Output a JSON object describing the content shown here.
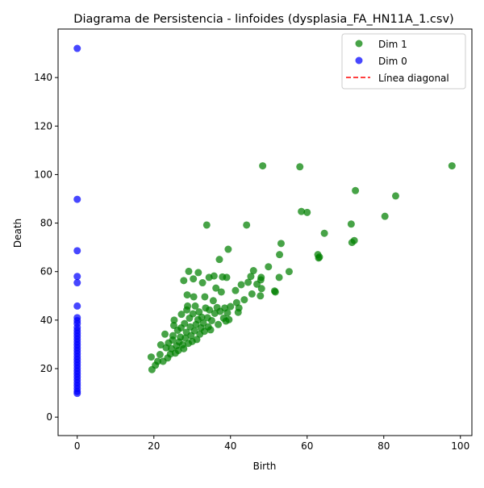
{
  "chart_data": {
    "type": "scatter",
    "title": "Diagrama de Persistencia - linfoides (dysplasia_FA_HN11A_1.csv)",
    "xlabel": "Birth",
    "ylabel": "Death",
    "xlim": [
      -5,
      103
    ],
    "ylim": [
      -7.6,
      160
    ],
    "xticks": [
      0,
      20,
      40,
      60,
      80,
      100
    ],
    "yticks": [
      0,
      20,
      40,
      60,
      80,
      100,
      120,
      140
    ],
    "grid": false,
    "legend_position": "top-right",
    "series": [
      {
        "name": "Dim 1",
        "color": "#008000",
        "points": [
          [
            19.3,
            24.8
          ],
          [
            19.5,
            19.6
          ],
          [
            20.4,
            21.4
          ],
          [
            21.0,
            23.0
          ],
          [
            21.6,
            25.8
          ],
          [
            21.8,
            29.8
          ],
          [
            22.4,
            23.0
          ],
          [
            22.9,
            34.2
          ],
          [
            23.2,
            28.6
          ],
          [
            23.6,
            24.4
          ],
          [
            23.8,
            30.6
          ],
          [
            24.3,
            26.0
          ],
          [
            24.6,
            28.2
          ],
          [
            24.9,
            31.8
          ],
          [
            25.0,
            33.6
          ],
          [
            25.2,
            37.8
          ],
          [
            25.3,
            40.0
          ],
          [
            25.6,
            26.4
          ],
          [
            25.9,
            29.4
          ],
          [
            26.2,
            35.8
          ],
          [
            26.4,
            27.5
          ],
          [
            26.6,
            31.0
          ],
          [
            26.9,
            33.0
          ],
          [
            27.1,
            36.8
          ],
          [
            27.2,
            42.4
          ],
          [
            27.5,
            29.8
          ],
          [
            27.8,
            28.2
          ],
          [
            27.8,
            56.3
          ],
          [
            28.0,
            38.6
          ],
          [
            28.2,
            32.6
          ],
          [
            28.5,
            35.0
          ],
          [
            28.6,
            44.2
          ],
          [
            28.7,
            50.4
          ],
          [
            28.8,
            45.8
          ],
          [
            29.0,
            30.4
          ],
          [
            29.1,
            60.1
          ],
          [
            29.3,
            40.8
          ],
          [
            29.5,
            37.2
          ],
          [
            29.7,
            33.6
          ],
          [
            30.0,
            31.2
          ],
          [
            30.2,
            42.6
          ],
          [
            30.3,
            57.0
          ],
          [
            30.4,
            49.6
          ],
          [
            30.6,
            35.6
          ],
          [
            30.8,
            45.8
          ],
          [
            31.0,
            38.2
          ],
          [
            31.2,
            32.0
          ],
          [
            31.5,
            40.2
          ],
          [
            31.6,
            59.6
          ],
          [
            31.8,
            43.4
          ],
          [
            32.0,
            34.2
          ],
          [
            32.3,
            36.8
          ],
          [
            32.5,
            41.2
          ],
          [
            32.7,
            55.4
          ],
          [
            32.9,
            38.8
          ],
          [
            33.2,
            35.4
          ],
          [
            33.3,
            49.6
          ],
          [
            33.5,
            45.0
          ],
          [
            33.8,
            79.2
          ],
          [
            34.0,
            41.0
          ],
          [
            34.2,
            37.2
          ],
          [
            34.4,
            57.6
          ],
          [
            34.5,
            44.2
          ],
          [
            34.8,
            36.0
          ],
          [
            35.1,
            39.8
          ],
          [
            35.5,
            48.0
          ],
          [
            35.7,
            58.2
          ],
          [
            35.9,
            42.8
          ],
          [
            36.2,
            53.2
          ],
          [
            36.5,
            45.2
          ],
          [
            36.8,
            38.2
          ],
          [
            37.1,
            65.0
          ],
          [
            37.3,
            43.6
          ],
          [
            37.6,
            51.6
          ],
          [
            37.9,
            57.8
          ],
          [
            38.2,
            40.8
          ],
          [
            38.5,
            45.0
          ],
          [
            38.8,
            39.6
          ],
          [
            39.0,
            57.6
          ],
          [
            39.2,
            43.0
          ],
          [
            39.4,
            69.2
          ],
          [
            39.6,
            40.2
          ],
          [
            40.0,
            45.6
          ],
          [
            41.3,
            52.2
          ],
          [
            41.6,
            47.2
          ],
          [
            42.0,
            43.2
          ],
          [
            42.2,
            45.0
          ],
          [
            42.8,
            54.6
          ],
          [
            43.6,
            48.4
          ],
          [
            44.2,
            79.2
          ],
          [
            44.6,
            55.6
          ],
          [
            45.3,
            58.0
          ],
          [
            45.6,
            50.8
          ],
          [
            46.0,
            60.4
          ],
          [
            46.9,
            54.8
          ],
          [
            47.8,
            50.0
          ],
          [
            47.9,
            56.6
          ],
          [
            48.0,
            57.6
          ],
          [
            48.1,
            53.0
          ],
          [
            48.4,
            103.6
          ],
          [
            49.9,
            62.0
          ],
          [
            51.5,
            52.0
          ],
          [
            51.7,
            51.6
          ],
          [
            52.7,
            57.6
          ],
          [
            52.8,
            67.0
          ],
          [
            53.2,
            71.6
          ],
          [
            55.3,
            60.0
          ],
          [
            58.1,
            103.2
          ],
          [
            58.5,
            84.8
          ],
          [
            60.0,
            84.4
          ],
          [
            62.8,
            67.0
          ],
          [
            63.0,
            65.6
          ],
          [
            63.2,
            66.0
          ],
          [
            64.5,
            75.8
          ],
          [
            71.5,
            79.6
          ],
          [
            71.7,
            72.0
          ],
          [
            72.3,
            72.8
          ],
          [
            72.6,
            93.4
          ],
          [
            80.3,
            82.8
          ],
          [
            83.1,
            91.2
          ],
          [
            97.8,
            103.6
          ]
        ]
      },
      {
        "name": "Dim 0",
        "color": "#0000ff",
        "points": [
          [
            0,
            152.0
          ],
          [
            0,
            89.8
          ],
          [
            0,
            68.6
          ],
          [
            0,
            58.0
          ],
          [
            0,
            55.4
          ],
          [
            0,
            45.8
          ],
          [
            0,
            41.0
          ],
          [
            0,
            39.8
          ],
          [
            0,
            38.6
          ],
          [
            0,
            37.0
          ],
          [
            0,
            35.8
          ],
          [
            0,
            34.6
          ],
          [
            0,
            33.4
          ],
          [
            0,
            32.2
          ],
          [
            0,
            31.0
          ],
          [
            0,
            29.8
          ],
          [
            0,
            28.6
          ],
          [
            0,
            27.4
          ],
          [
            0,
            26.2
          ],
          [
            0,
            25.0
          ],
          [
            0,
            23.8
          ],
          [
            0,
            22.6
          ],
          [
            0,
            21.4
          ],
          [
            0,
            20.2
          ],
          [
            0,
            19.0
          ],
          [
            0,
            17.8
          ],
          [
            0,
            16.6
          ],
          [
            0,
            15.4
          ],
          [
            0,
            14.2
          ],
          [
            0,
            13.0
          ],
          [
            0,
            11.8
          ],
          [
            0,
            10.6
          ],
          [
            0,
            9.8
          ]
        ]
      }
    ],
    "reference_line": {
      "name": "Línea diagonal",
      "color": "#ff0000",
      "style": "dashed"
    }
  }
}
